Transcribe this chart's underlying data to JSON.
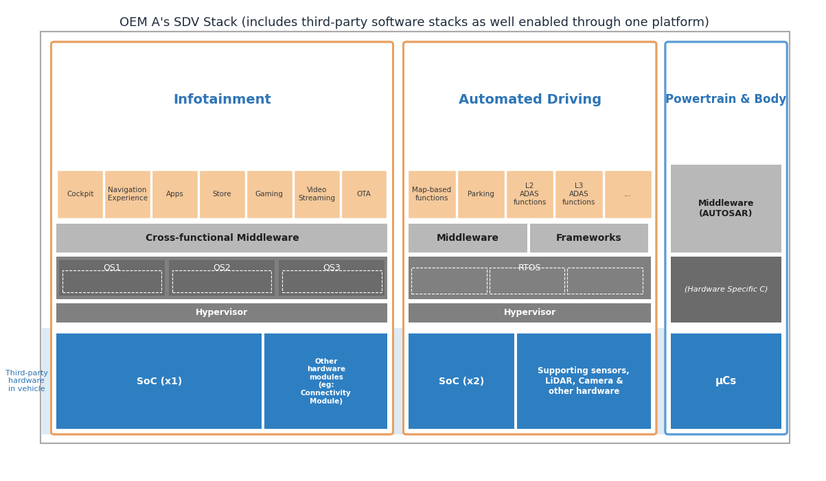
{
  "title": "OEM A's SDV Stack (includes third-party software stacks as well enabled through one platform)",
  "title_fontsize": 13,
  "bg_color": "#ffffff",
  "outer_border_color": "#cccccc",
  "section_border_orange": "#e8a060",
  "section_border_blue": "#5b9bd5",
  "colors": {
    "peach": "#f5c99a",
    "light_gray": "#b8b8b8",
    "dark_gray": "#808080",
    "darker_gray": "#6b6b6b",
    "blue": "#2e7fc2",
    "light_blue_bg": "#deeaf4",
    "white": "#ffffff",
    "text_dark": "#1f2d3d",
    "text_white": "#ffffff",
    "text_blue_header": "#2e75b6"
  },
  "sections": [
    "Infotainment",
    "Automated Driving",
    "Powertrain & Body"
  ],
  "infotainment_apps": [
    "Cockpit",
    "Navigation\nExperience",
    "Apps",
    "Store",
    "Gaming",
    "Video\nStreaming",
    "OTA"
  ],
  "ad_apps": [
    "Map-based\nfunctions",
    "Parking",
    "L2\nADAS\nfunctions",
    "L3\nADAS\nfunctions",
    "..."
  ],
  "third_party_label": "Third-party\nhardware\nin vehicle"
}
